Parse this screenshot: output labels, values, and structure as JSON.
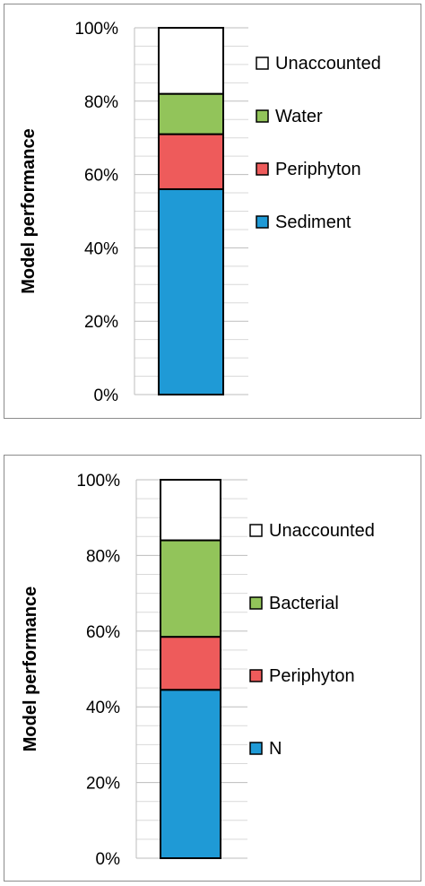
{
  "chart_data": [
    {
      "type": "bar",
      "stacked": true,
      "categories": [
        ""
      ],
      "ylabel": "Model performance",
      "ylim": [
        0,
        100
      ],
      "yticks": [
        "0%",
        "20%",
        "40%",
        "60%",
        "80%",
        "100%"
      ],
      "grid": true,
      "legend_position": "right",
      "series": [
        {
          "name": "Sediment",
          "values": [
            56
          ],
          "color": "#1f9ad6"
        },
        {
          "name": "Periphyton",
          "values": [
            15
          ],
          "color": "#ee5b5b"
        },
        {
          "name": "Water",
          "values": [
            11
          ],
          "color": "#92c45a"
        },
        {
          "name": "Unaccounted",
          "values": [
            18
          ],
          "color": "#ffffff"
        }
      ]
    },
    {
      "type": "bar",
      "stacked": true,
      "categories": [
        ""
      ],
      "ylabel": "Model performance",
      "ylim": [
        0,
        100
      ],
      "yticks": [
        "0%",
        "20%",
        "40%",
        "60%",
        "80%",
        "100%"
      ],
      "grid": true,
      "legend_position": "right",
      "series": [
        {
          "name": "N",
          "values": [
            44.5
          ],
          "color": "#1f9ad6"
        },
        {
          "name": "Periphyton",
          "values": [
            14
          ],
          "color": "#ee5b5b"
        },
        {
          "name": "Bacterial",
          "values": [
            25.5
          ],
          "color": "#92c45a"
        },
        {
          "name": "Unaccounted",
          "values": [
            16
          ],
          "color": "#ffffff"
        }
      ]
    }
  ]
}
